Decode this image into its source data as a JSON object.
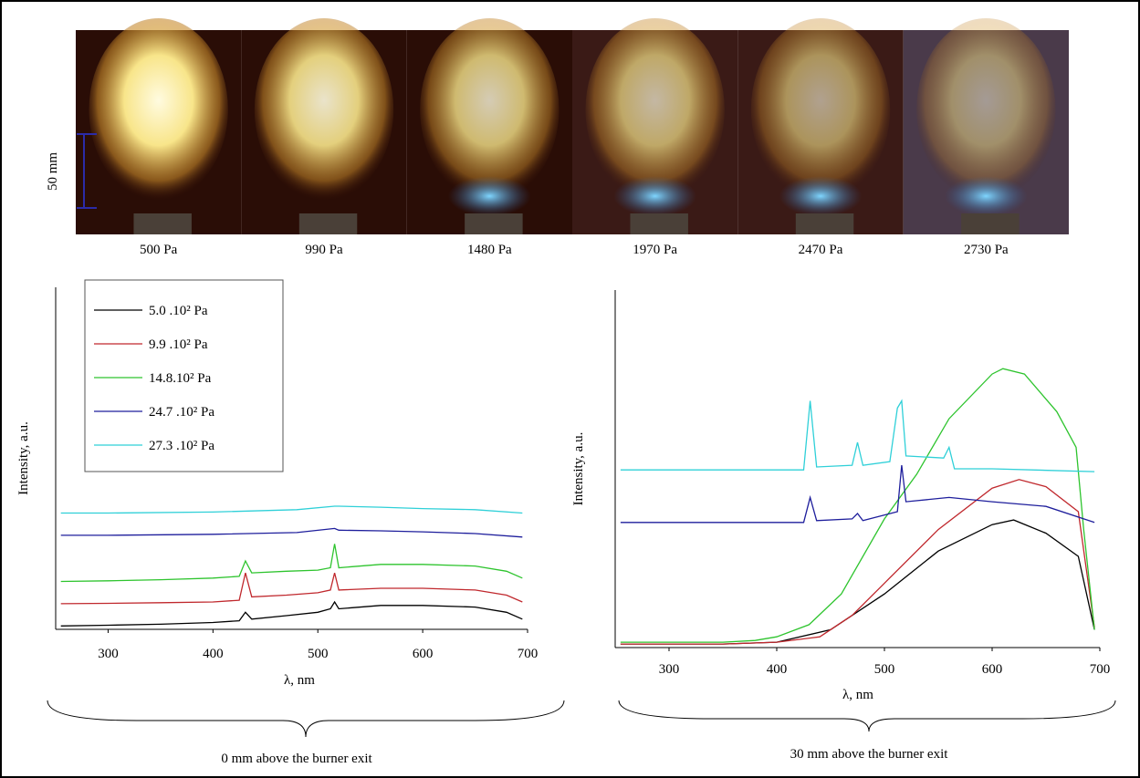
{
  "photo_strip": {
    "labels": [
      "500 Pa",
      "990 Pa",
      "1480 Pa",
      "1970 Pa",
      "2470 Pa",
      "2730 Pa"
    ],
    "scale_bar": "50 mm"
  },
  "captions": [
    "0 mm above the burner exit",
    "30 mm above the burner exit"
  ],
  "chart_data": [
    {
      "type": "line",
      "xlabel": "λ, nm",
      "ylabel": "Intensity, a.u.",
      "xlim": [
        250,
        700
      ],
      "xticks": [
        300,
        400,
        500,
        600,
        700
      ],
      "ylim": [
        0,
        100
      ],
      "legend": "top-left",
      "series": [
        {
          "name": "5.0 .10² Pa",
          "color": "#000000",
          "x": [
            255,
            300,
            350,
            400,
            425,
            431,
            437,
            470,
            500,
            512,
            516,
            520,
            560,
            600,
            650,
            680,
            695
          ],
          "values": [
            1,
            1.2,
            1.5,
            2,
            2.5,
            5,
            3,
            4,
            5,
            6,
            8,
            6,
            7,
            7,
            6.5,
            5,
            3
          ]
        },
        {
          "name": "9.9 .10² Pa",
          "color": "#c0282d",
          "x": [
            255,
            300,
            350,
            400,
            425,
            431,
            437,
            470,
            500,
            512,
            516,
            520,
            560,
            600,
            650,
            680,
            695
          ],
          "values": [
            7.5,
            7.6,
            7.8,
            8,
            8.5,
            16.5,
            9.5,
            10,
            10.7,
            11.5,
            16.5,
            11.5,
            12,
            12,
            11.5,
            10,
            8
          ]
        },
        {
          "name": "14.8.10² Pa",
          "color": "#2ec42e",
          "x": [
            255,
            300,
            350,
            400,
            425,
            431,
            437,
            470,
            500,
            512,
            516,
            520,
            560,
            600,
            650,
            680,
            695
          ],
          "values": [
            14,
            14.2,
            14.5,
            15,
            15.5,
            20,
            16.5,
            17,
            17.3,
            18,
            25,
            18,
            19,
            19,
            18.5,
            17,
            15
          ]
        },
        {
          "name": "24.7 .10² Pa",
          "color": "#1e1e9c",
          "x": [
            255,
            300,
            400,
            480,
            516,
            520,
            560,
            600,
            650,
            695
          ],
          "values": [
            27.5,
            27.5,
            27.8,
            28.3,
            29.5,
            29,
            28.8,
            28.5,
            28,
            27
          ]
        },
        {
          "name": "27.3 .10² Pa",
          "color": "#2fd0d8",
          "x": [
            255,
            300,
            400,
            480,
            516,
            520,
            560,
            600,
            650,
            695
          ],
          "values": [
            34,
            34,
            34.3,
            35,
            36,
            36,
            35.7,
            35.3,
            35,
            34
          ]
        }
      ]
    },
    {
      "type": "line",
      "xlabel": "λ, nm",
      "ylabel": "Intensity, a.u.",
      "xlim": [
        250,
        700
      ],
      "xticks": [
        300,
        400,
        500,
        600,
        700
      ],
      "ylim": [
        0,
        100
      ],
      "series": [
        {
          "color": "#000000",
          "x": [
            255,
            350,
            400,
            450,
            500,
            550,
            600,
            620,
            650,
            680,
            695
          ],
          "values": [
            1,
            1,
            1.5,
            5,
            15,
            27,
            34.4,
            35.7,
            32,
            25.5,
            5
          ]
        },
        {
          "color": "#c0282d",
          "x": [
            255,
            350,
            400,
            440,
            470,
            500,
            550,
            600,
            625,
            650,
            680,
            695
          ],
          "values": [
            1,
            1,
            1.5,
            3,
            9,
            18,
            33,
            44.6,
            47,
            45,
            38,
            5.6
          ]
        },
        {
          "color": "#2ec42e",
          "x": [
            255,
            350,
            380,
            400,
            430,
            460,
            500,
            530,
            560,
            600,
            610,
            630,
            660,
            678,
            685,
            695
          ],
          "values": [
            1.5,
            1.5,
            2,
            3,
            6.4,
            15,
            36,
            48.5,
            64,
            76.5,
            78,
            76.5,
            66,
            56,
            33,
            5
          ]
        },
        {
          "color": "#1e1e9c",
          "x": [
            255,
            425,
            431,
            437,
            470,
            475,
            480,
            512,
            516,
            520,
            560,
            600,
            650,
            695
          ],
          "values": [
            35,
            35,
            42,
            35.5,
            36,
            37.5,
            35.5,
            38,
            51,
            40.8,
            42,
            40.8,
            39.5,
            35
          ]
        },
        {
          "color": "#2fd0d8",
          "x": [
            255,
            425,
            431,
            437,
            470,
            475,
            480,
            505,
            512,
            516,
            520,
            555,
            560,
            565,
            600,
            695
          ],
          "values": [
            49.7,
            49.7,
            69,
            50.5,
            51,
            57.4,
            51,
            52,
            67,
            69,
            53.6,
            53,
            56,
            50,
            50,
            49.2
          ]
        }
      ]
    }
  ]
}
